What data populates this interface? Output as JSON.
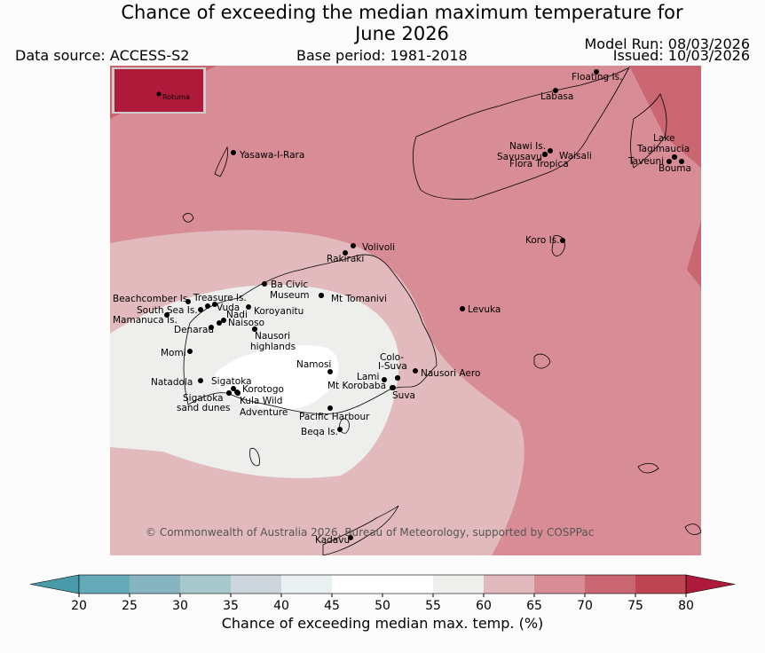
{
  "title": {
    "line1": "Chance of exceeding the median maximum temperature for",
    "line2": "June 2026"
  },
  "header": {
    "data_source": "Data source: ACCESS-S2",
    "base_period": "Base period: 1981-2018",
    "model_run": "Model Run: 08/03/2026",
    "issued": "Issued: 10/03/2026"
  },
  "inset": {
    "label": "Rotuma"
  },
  "places": [
    {
      "name": "Floating Is."
    },
    {
      "name": "Labasa"
    },
    {
      "name": "Yasawa-I-Rara"
    },
    {
      "name": "Nawi Is."
    },
    {
      "name": "Savusavu"
    },
    {
      "name": "Waisali"
    },
    {
      "name": "Flora Tropica"
    },
    {
      "name": "Lake"
    },
    {
      "name": "Tagimaucia"
    },
    {
      "name": "Taveuni"
    },
    {
      "name": "Bouma"
    },
    {
      "name": "Koro Is."
    },
    {
      "name": "Volivoli"
    },
    {
      "name": "Rakiraki"
    },
    {
      "name": "Ba Civic"
    },
    {
      "name": "Museum"
    },
    {
      "name": "Mt Tomanivi"
    },
    {
      "name": "Beachcomber Is."
    },
    {
      "name": "Treasure Is."
    },
    {
      "name": "Vuda"
    },
    {
      "name": "South Sea Is."
    },
    {
      "name": "Koroyanitu"
    },
    {
      "name": "Nadi"
    },
    {
      "name": "Mamanuca Is."
    },
    {
      "name": "Naisoso"
    },
    {
      "name": "Denarau"
    },
    {
      "name": "Levuka"
    },
    {
      "name": "Nausori"
    },
    {
      "name": "highlands"
    },
    {
      "name": "Momi"
    },
    {
      "name": "Namosi"
    },
    {
      "name": "Colo-"
    },
    {
      "name": "I-Suva"
    },
    {
      "name": "Lami"
    },
    {
      "name": "Nausori Aero"
    },
    {
      "name": "Natadola"
    },
    {
      "name": "Sigatoka"
    },
    {
      "name": "Korotogo"
    },
    {
      "name": "Mt Korobaba"
    },
    {
      "name": "Suva"
    },
    {
      "name": "Sigatoka"
    },
    {
      "name": "sand dunes"
    },
    {
      "name": "Kula Wild"
    },
    {
      "name": "Adventure"
    },
    {
      "name": "Pacific Harbour"
    },
    {
      "name": "Beqa Is."
    },
    {
      "name": "Kadavu"
    }
  ],
  "copyright": "© Commonwealth of Australia 2026, Bureau of Meteorology, supported by COSPPac",
  "colorbar": {
    "label": "Chance of exceeding median max. temp. (%)",
    "ticks": [
      "20",
      "25",
      "30",
      "35",
      "40",
      "45",
      "50",
      "55",
      "60",
      "65",
      "70",
      "75",
      "80"
    ],
    "colors": [
      "#64aab8",
      "#86b4c0",
      "#a6c8cc",
      "#ccd6dc",
      "#eaf0f2",
      "#ffffff",
      "#ffffff",
      "#eeeeec",
      "#e2babd",
      "#d88c95",
      "#ca6671",
      "#bf4452"
    ],
    "under_color": "#4a9aaa",
    "over_color": "#b01a3a"
  },
  "map_colors": {
    "c70_75": "#ca6671",
    "c65_70": "#d88c95",
    "c60_65": "#e2babd",
    "c55_60": "#eeeeec",
    "c50_55": "#ffffff",
    "inset_fill": "#b01a3a"
  }
}
